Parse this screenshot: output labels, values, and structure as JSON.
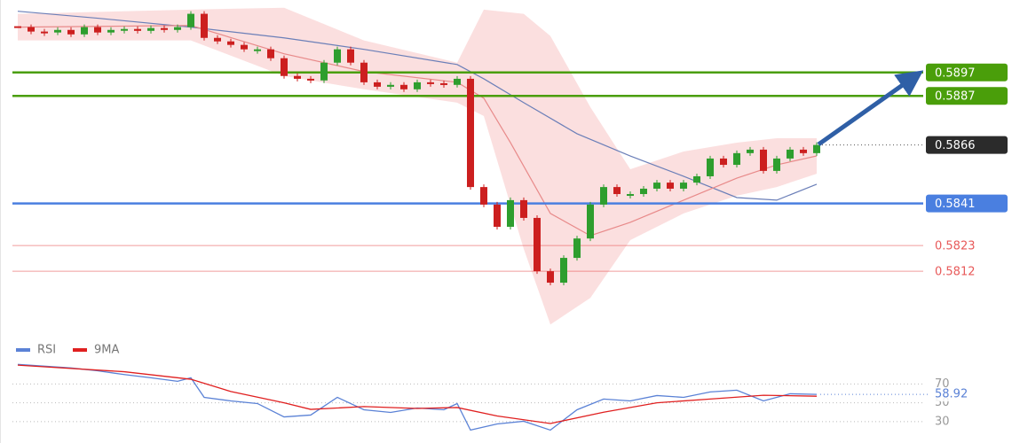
{
  "chart_data": {
    "type": "candlestick",
    "ylim": [
      0.5784,
      0.5928
    ],
    "up_color": "#2e9e2e",
    "down_color": "#cc1f1f",
    "close": [
      0.59164,
      0.59145,
      0.59141,
      0.59152,
      0.59133,
      0.59164,
      0.59141,
      0.59152,
      0.59156,
      0.59148,
      0.5916,
      0.59152,
      0.59164,
      0.59221,
      0.59118,
      0.59103,
      0.59088,
      0.59069,
      0.59069,
      0.59031,
      0.58955,
      0.58943,
      0.58936,
      0.59012,
      0.59069,
      0.59012,
      0.58928,
      0.58909,
      0.58917,
      0.58898,
      0.58928,
      0.58924,
      0.58917,
      0.58943,
      0.5848,
      0.58405,
      0.5831,
      0.58424,
      0.58348,
      0.5812,
      0.58071,
      0.58177,
      0.5826,
      0.58405,
      0.5848,
      0.5845,
      0.5845,
      0.58473,
      0.58499,
      0.58473,
      0.58499,
      0.58526,
      0.58602,
      0.58575,
      0.58625,
      0.5864,
      0.58549,
      0.58602,
      0.5864,
      0.58625,
      0.5866
    ],
    "band": {
      "color": "#f8c9c9",
      "x": [
        0,
        13,
        20,
        26,
        33,
        35,
        38,
        40,
        43,
        46,
        50,
        54,
        57,
        60
      ],
      "upper": [
        0.59221,
        0.59239,
        0.59247,
        0.59107,
        0.59012,
        0.59239,
        0.59221,
        0.59126,
        0.58822,
        0.58556,
        0.58632,
        0.5867,
        0.58689,
        0.58689
      ],
      "lower": [
        0.59107,
        0.59107,
        0.58955,
        0.58898,
        0.58841,
        0.58784,
        0.58215,
        0.57892,
        0.58006,
        0.58253,
        0.58367,
        0.58443,
        0.5848,
        0.58537
      ]
    },
    "overlays": [
      {
        "color": "#6b7fb8",
        "x": [
          0,
          6,
          13,
          20,
          26,
          33,
          35,
          38,
          42,
          46,
          50,
          54,
          57,
          60
        ],
        "values": [
          0.59232,
          0.59202,
          0.59164,
          0.59118,
          0.59069,
          0.59004,
          0.58943,
          0.58841,
          0.58708,
          0.58613,
          0.58526,
          0.58435,
          0.58424,
          0.58492
        ]
      },
      {
        "color": "#e88a8a",
        "x": [
          0,
          13,
          20,
          26,
          33,
          35,
          37,
          40,
          43,
          46,
          50,
          54,
          57,
          60
        ],
        "values": [
          0.59164,
          0.59171,
          0.5905,
          0.58974,
          0.58928,
          0.5886,
          0.5867,
          0.58367,
          0.58272,
          0.58329,
          0.58424,
          0.58518,
          0.58575,
          0.58613
        ]
      }
    ],
    "levels": [
      {
        "value": 0.5897,
        "color": "#4a9e0a",
        "line": "solid",
        "label_style": "box"
      },
      {
        "value": 0.5887,
        "color": "#4a9e0a",
        "line": "solid",
        "label_style": "box"
      },
      {
        "value": 0.5866,
        "color": "#2b2b2b",
        "line": "dotted",
        "label_style": "box"
      },
      {
        "value": 0.5841,
        "color": "#4a7fe0",
        "line": "solid",
        "label_style": "box"
      },
      {
        "value": 0.5823,
        "color": "#e85a5a",
        "line": "thin",
        "label_style": "text"
      },
      {
        "value": 0.5812,
        "color": "#e85a5a",
        "line": "thin",
        "label_style": "text"
      }
    ],
    "rsi_panel": {
      "ylim": [
        12,
        92
      ],
      "yticks": [
        30,
        50,
        70
      ],
      "series": [
        {
          "name": "RSI",
          "color": "#5b82d6",
          "x": [
            0,
            2,
            4,
            6,
            8,
            10,
            12,
            13,
            14,
            16,
            18,
            20,
            22,
            24,
            26,
            28,
            30,
            32,
            33,
            34,
            36,
            38,
            40,
            42,
            44,
            46,
            48,
            50,
            52,
            54,
            56,
            58,
            60
          ],
          "values": [
            90.8,
            88.9,
            87,
            84,
            80,
            76.6,
            72.8,
            76.6,
            55.8,
            52,
            49.2,
            35,
            37,
            55.8,
            42.6,
            39.8,
            44.5,
            42.6,
            49.2,
            21,
            27.5,
            30.4,
            21,
            42.6,
            54,
            52,
            57.7,
            55.8,
            61.5,
            63.4,
            52,
            59.6,
            58.92
          ]
        },
        {
          "name": "9MA",
          "color": "#e02020",
          "x": [
            0,
            8,
            13,
            16,
            20,
            22,
            26,
            30,
            33,
            36,
            40,
            44,
            48,
            52,
            56,
            60
          ],
          "values": [
            90,
            83,
            75,
            62,
            50,
            43,
            46,
            44,
            45,
            36,
            28,
            40,
            50,
            54,
            58,
            57
          ]
        }
      ]
    }
  }
}
